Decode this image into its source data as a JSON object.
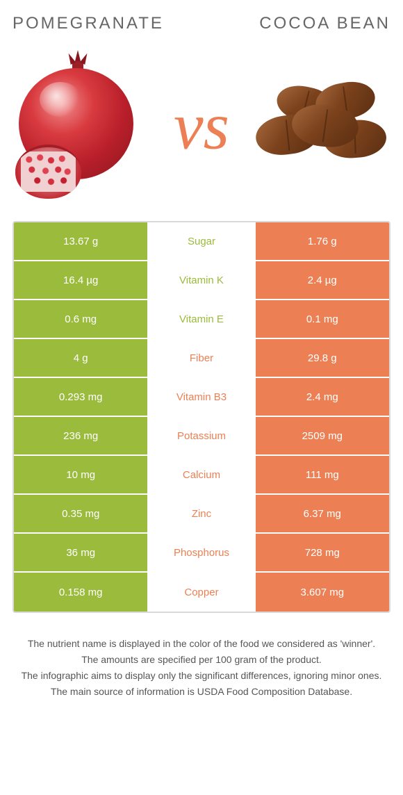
{
  "left_name": "POMEGRANATE",
  "right_name": "COCOA BEAN",
  "vs_label": "vs",
  "colors": {
    "left_bar": "#9bbb3c",
    "right_bar": "#ec8054",
    "nutrient_left_text": "#9bbb3c",
    "nutrient_right_text": "#ec8054",
    "vs_text": "#ec8054",
    "cell_text": "#ffffff",
    "border": "#d9d9d9",
    "body_text": "#555555"
  },
  "rows": [
    {
      "nutrient": "Sugar",
      "left": "13.67 g",
      "right": "1.76 g",
      "winner": "left"
    },
    {
      "nutrient": "Vitamin K",
      "left": "16.4 µg",
      "right": "2.4 µg",
      "winner": "left"
    },
    {
      "nutrient": "Vitamin E",
      "left": "0.6 mg",
      "right": "0.1 mg",
      "winner": "left"
    },
    {
      "nutrient": "Fiber",
      "left": "4 g",
      "right": "29.8 g",
      "winner": "right"
    },
    {
      "nutrient": "Vitamin B3",
      "left": "0.293 mg",
      "right": "2.4 mg",
      "winner": "right"
    },
    {
      "nutrient": "Potassium",
      "left": "236 mg",
      "right": "2509 mg",
      "winner": "right"
    },
    {
      "nutrient": "Calcium",
      "left": "10 mg",
      "right": "111 mg",
      "winner": "right"
    },
    {
      "nutrient": "Zinc",
      "left": "0.35 mg",
      "right": "6.37 mg",
      "winner": "right"
    },
    {
      "nutrient": "Phosphorus",
      "left": "36 mg",
      "right": "728 mg",
      "winner": "right"
    },
    {
      "nutrient": "Copper",
      "left": "0.158 mg",
      "right": "3.607 mg",
      "winner": "right"
    }
  ],
  "footer": [
    "The nutrient name is displayed in the color of the food we considered as 'winner'.",
    "The amounts are specified per 100 gram of the product.",
    "The infographic aims to display only the significant differences, ignoring minor ones.",
    "The main source of information is USDA Food Composition Database."
  ]
}
